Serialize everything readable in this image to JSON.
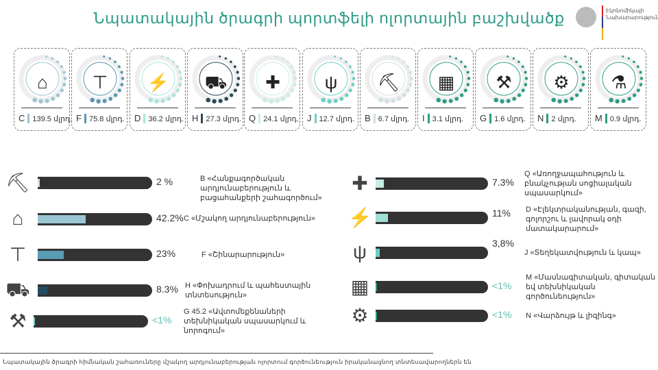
{
  "title": "Նպատակային ծրագրի պորտֆելի ոլորտային բաշխվածք",
  "logo": {
    "text": "Էկոնոմիկայի Նախարարություն"
  },
  "unit": "մլրդ.",
  "cards": [
    {
      "code": "C",
      "amount": "139.5",
      "color": "#9cc5d4",
      "icon": "factory-icon"
    },
    {
      "code": "F",
      "amount": "75.8",
      "color": "#5a95b0",
      "icon": "crane-icon"
    },
    {
      "code": "D",
      "amount": "36.2",
      "color": "#a8e4dc",
      "icon": "lightning-icon"
    },
    {
      "code": "H",
      "amount": "27.3",
      "color": "#2b4a55",
      "icon": "truck-icon"
    },
    {
      "code": "Q",
      "amount": "24.1",
      "color": "#c6ece6",
      "icon": "hospital-icon"
    },
    {
      "code": "J",
      "amount": "12.7",
      "color": "#6ccfc4",
      "icon": "antenna-icon"
    },
    {
      "code": "B",
      "amount": "6.7",
      "color": "#cfe0e4",
      "icon": "mining-icon"
    },
    {
      "code": "I",
      "amount": "3.1",
      "color": "#2e9c86",
      "icon": "hotel-icon"
    },
    {
      "code": "G",
      "amount": "1.6",
      "color": "#2e9c86",
      "icon": "car-repair-icon"
    },
    {
      "code": "N",
      "amount": "2",
      "color": "#2e9c86",
      "icon": "tools-icon"
    },
    {
      "code": "M",
      "amount": "0.9",
      "color": "#2e9c86",
      "icon": "microscope-icon"
    }
  ],
  "shares_left": [
    {
      "pct": "2 %",
      "value": 2,
      "color": "#cfe0e4",
      "icon": "mining-icon",
      "desc": "B «Հանքագործական արդյունաբերություն և բացահանքերի շահագործում»"
    },
    {
      "pct": "42.2%",
      "value": 42.2,
      "color": "#9cc5d4",
      "icon": "factory-icon",
      "desc": "C «Մշակող արդյունաբերություն»"
    },
    {
      "pct": "23%",
      "value": 23,
      "color": "#5a9bb5",
      "icon": "crane-icon",
      "desc": "F «Շինարարություն»"
    },
    {
      "pct": "8.3%",
      "value": 8.3,
      "color": "#244d5f",
      "icon": "truck-icon",
      "desc": "H «Փոխադրում և պահեստային տնտեսություն»"
    },
    {
      "pct": "<1%",
      "value": 0.5,
      "color": "#6ccfc4",
      "icon": "car-repair-icon",
      "desc": "G 45.2 «Ավտոմեքենաների տեխնիկական սպասարկում և նորոգում»"
    }
  ],
  "shares_right": [
    {
      "pct": "7.3%",
      "value": 7.3,
      "color": "#c6ece6",
      "icon": "hospital-icon",
      "desc": "Q «Առողջապահություն և բնակչության սոցիալական սպասարկում»"
    },
    {
      "pct": "11%",
      "value": 11,
      "color": "#a0e0d8",
      "icon": "lightning-icon",
      "desc": "D «Էլեկտրականության, գազի, գոլորշու և լավորակ օդի մատակարարում»"
    },
    {
      "pct": "3,8%",
      "value": 3.8,
      "color": "#6ccfc4",
      "icon": "antenna-icon",
      "desc": "J «Տեղեկատվություն և կապ»"
    },
    {
      "pct": "<1%",
      "value": 0.5,
      "color": "#2e9c86",
      "icon": "hotel-icon",
      "desc": "M «Մասնագիտական, գիտական եվ տեխնիկական գործունեություն»"
    },
    {
      "pct": "<1%",
      "value": 0.5,
      "color": "#2e9c86",
      "icon": "tools-icon",
      "desc": "N «Վարձույթ և լիզինգ»"
    }
  ],
  "footer": "Նպատակային ծրագրի հիմնական շահառուները մշակող արդյունաբերության ոլորտում գործունեություն իրականացնող տնտեսավարողներն են"
}
